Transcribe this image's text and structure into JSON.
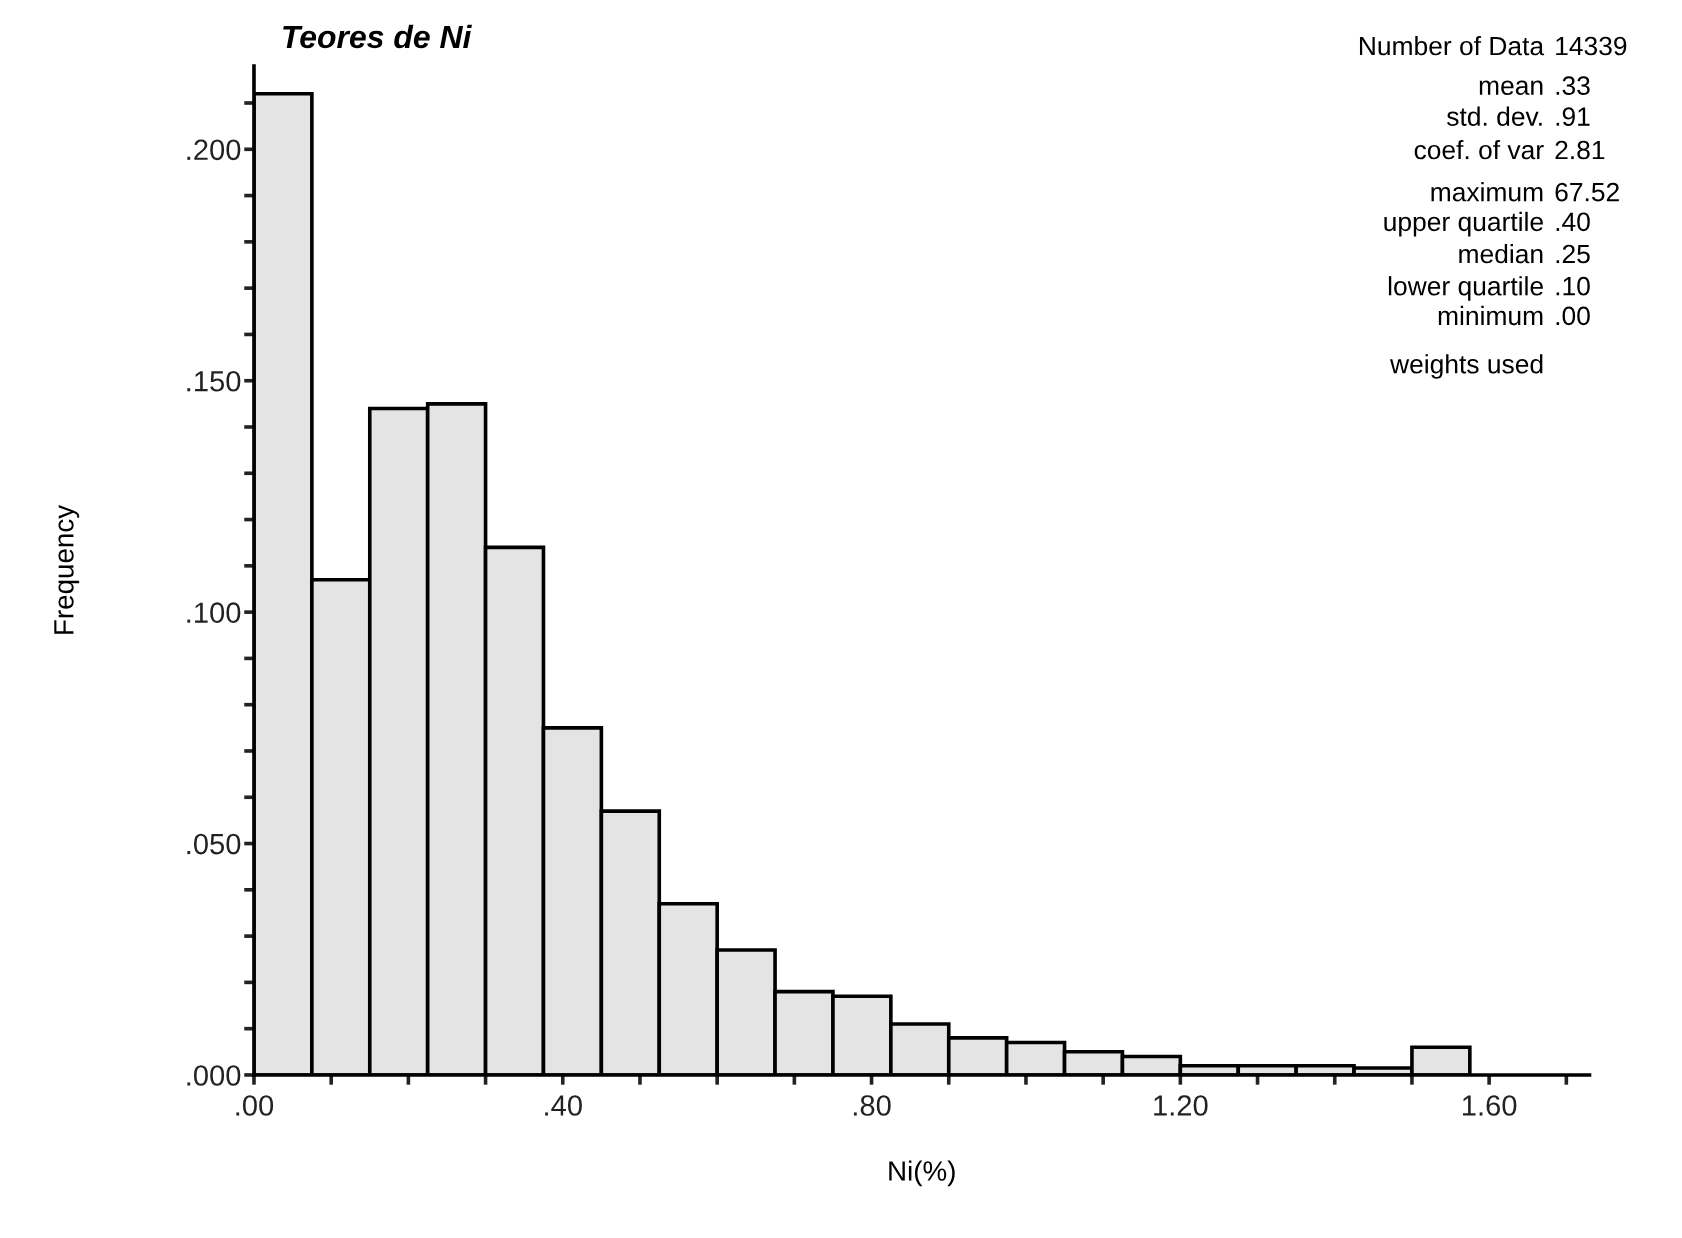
{
  "chart_data": {
    "type": "histogram",
    "title": "Teores de Ni",
    "xlabel": "Ni(%)",
    "ylabel": "Frequency",
    "bins": [
      0,
      0.075,
      0.15,
      0.225,
      0.3,
      0.375,
      0.45,
      0.525,
      0.6,
      0.675,
      0.75,
      0.825,
      0.9,
      0.975,
      1.05,
      1.125,
      1.2,
      1.275,
      1.35,
      1.425,
      1.5,
      1.575
    ],
    "values": [
      0.212,
      0.107,
      0.144,
      0.145,
      0.114,
      0.075,
      0.057,
      0.037,
      0.027,
      0.018,
      0.017,
      0.011,
      0.008,
      0.007,
      0.005,
      0.004,
      0.002,
      0.002,
      0.002,
      0.0015,
      0.006
    ],
    "color": "#e4e4e4",
    "xlim": [
      0,
      1.73
    ],
    "ylim": [
      0,
      0.218
    ],
    "xticks": [
      {
        "value": 0,
        "label": ".00"
      },
      {
        "value": 0.1,
        "label": null
      },
      {
        "value": 0.2,
        "label": null
      },
      {
        "value": 0.3,
        "label": null
      },
      {
        "value": 0.4,
        "label": ".40"
      },
      {
        "value": 0.5,
        "label": null
      },
      {
        "value": 0.6,
        "label": null
      },
      {
        "value": 0.7,
        "label": null
      },
      {
        "value": 0.8,
        "label": ".80"
      },
      {
        "value": 0.9,
        "label": null
      },
      {
        "value": 1.0,
        "label": null
      },
      {
        "value": 1.1,
        "label": null
      },
      {
        "value": 1.2,
        "label": "1.20"
      },
      {
        "value": 1.3,
        "label": null
      },
      {
        "value": 1.4,
        "label": null
      },
      {
        "value": 1.5,
        "label": null
      },
      {
        "value": 1.6,
        "label": "1.60"
      },
      {
        "value": 1.7,
        "label": null
      }
    ],
    "yticks": [
      {
        "value": 0,
        "label": ".000"
      },
      {
        "value": 0.01,
        "label": null
      },
      {
        "value": 0.02,
        "label": null
      },
      {
        "value": 0.03,
        "label": null
      },
      {
        "value": 0.04,
        "label": null
      },
      {
        "value": 0.05,
        "label": ".050"
      },
      {
        "value": 0.06,
        "label": null
      },
      {
        "value": 0.07,
        "label": null
      },
      {
        "value": 0.08,
        "label": null
      },
      {
        "value": 0.09,
        "label": null
      },
      {
        "value": 0.1,
        "label": ".100"
      },
      {
        "value": 0.11,
        "label": null
      },
      {
        "value": 0.12,
        "label": null
      },
      {
        "value": 0.13,
        "label": null
      },
      {
        "value": 0.14,
        "label": null
      },
      {
        "value": 0.15,
        "label": ".150"
      },
      {
        "value": 0.16,
        "label": null
      },
      {
        "value": 0.17,
        "label": null
      },
      {
        "value": 0.18,
        "label": null
      },
      {
        "value": 0.19,
        "label": null
      },
      {
        "value": 0.2,
        "label": ".200"
      },
      {
        "value": 0.21,
        "label": null
      }
    ],
    "grid": false,
    "annotations": [
      "Number of Data 14339",
      "mean .33",
      "std. dev. .91",
      "coef. of var 2.81",
      "maximum 67.52",
      "upper quartile .40",
      "median .25",
      "lower quartile .10",
      "minimum .00",
      "weights used"
    ]
  }
}
